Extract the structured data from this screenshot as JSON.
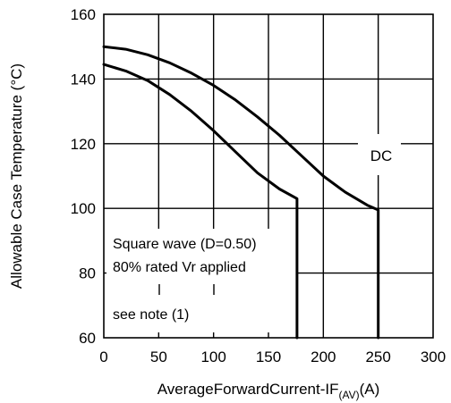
{
  "chart_data": {
    "type": "line",
    "xlabel_main": "AverageForwardCurrent-IF",
    "xlabel_sub": "(AV)",
    "xlabel_unit": "(A)",
    "ylabel": "Allowable Case Temperature (°C)",
    "xlim": [
      0,
      300
    ],
    "ylim": [
      60,
      160
    ],
    "x_ticks": [
      "0",
      "50",
      "100",
      "150",
      "200",
      "250",
      "300"
    ],
    "y_ticks": [
      "60",
      "80",
      "100",
      "120",
      "140",
      "160"
    ],
    "grid": true,
    "series": [
      {
        "name": "DC",
        "x": [
          0,
          20,
          40,
          60,
          80,
          100,
          120,
          140,
          160,
          180,
          200,
          220,
          240,
          250,
          250
        ],
        "y": [
          150,
          149.2,
          147.5,
          145,
          141.8,
          138,
          133.5,
          128.3,
          122.6,
          116.3,
          110,
          105,
          101,
          99.5,
          60
        ]
      },
      {
        "name": "",
        "x": [
          0,
          20,
          40,
          60,
          80,
          100,
          120,
          140,
          160,
          176,
          176
        ],
        "y": [
          144.5,
          142.5,
          139.5,
          135.2,
          130,
          124,
          117.5,
          111,
          106,
          103,
          60
        ]
      }
    ],
    "annotations": [
      {
        "text": "DC"
      },
      {
        "text": "Square wave (D=0.50)"
      },
      {
        "text": "80% rated Vr applied"
      },
      {
        "text": "see note (1)"
      }
    ]
  }
}
